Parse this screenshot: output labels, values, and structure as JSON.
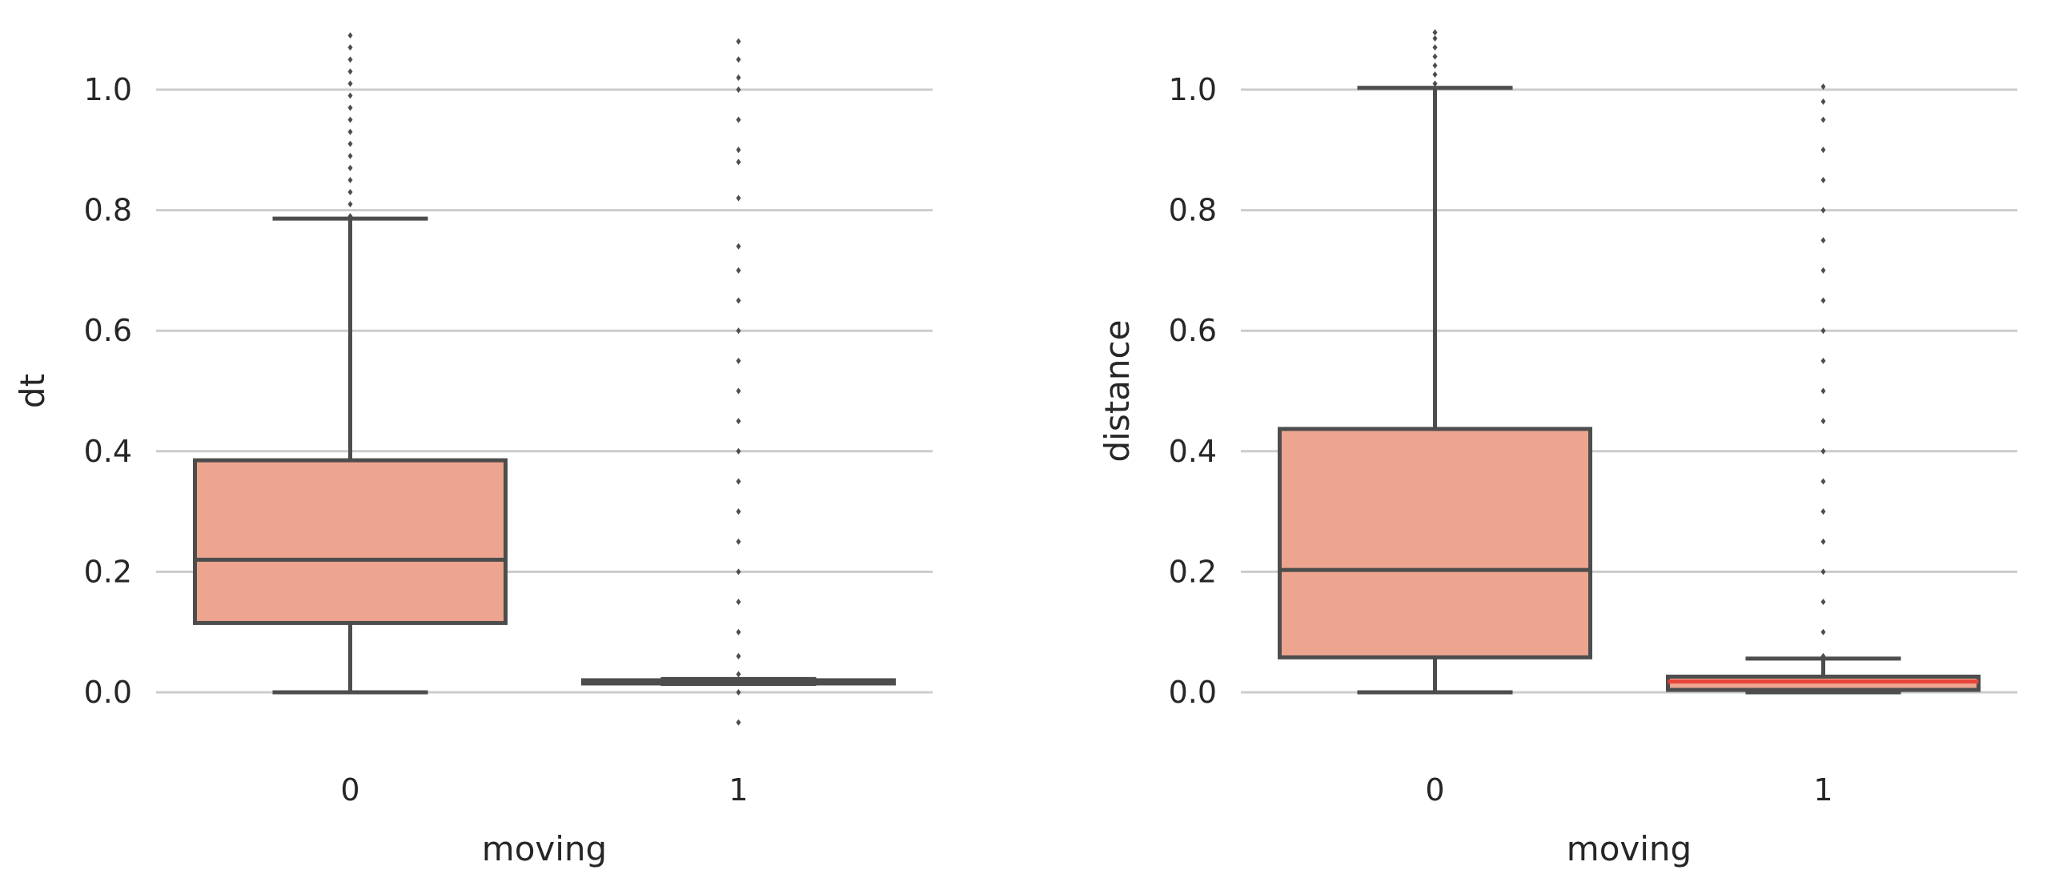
{
  "chart_data": [
    {
      "type": "box",
      "title": "",
      "xlabel": "moving",
      "ylabel": "dt",
      "categories": [
        "0",
        "1"
      ],
      "ylim": [
        -0.12,
        1.1
      ],
      "yticks": [
        "0.0",
        "0.2",
        "0.4",
        "0.6",
        "0.8",
        "1.0"
      ],
      "grid": "horizontal",
      "boxes": [
        {
          "category": "0",
          "q1": 0.115,
          "median": 0.22,
          "q3": 0.385,
          "whisker_low": 0.0,
          "whisker_high": 0.786,
          "outliers": [
            0.79,
            0.81,
            0.83,
            0.85,
            0.87,
            0.89,
            0.91,
            0.93,
            0.95,
            0.97,
            0.99,
            1.01,
            1.03,
            1.05,
            1.07,
            1.09
          ],
          "fill": "#eea590",
          "median_color": "#4d4d4d"
        },
        {
          "category": "1",
          "q1": 0.016,
          "median": 0.018,
          "q3": 0.02,
          "whisker_low": 0.014,
          "whisker_high": 0.022,
          "outliers": [
            -0.05,
            0.0,
            0.03,
            0.06,
            0.1,
            0.15,
            0.2,
            0.25,
            0.3,
            0.35,
            0.4,
            0.45,
            0.5,
            0.55,
            0.6,
            0.65,
            0.7,
            0.74,
            0.82,
            0.88,
            0.9,
            0.95,
            1.0,
            1.02,
            1.05,
            1.08
          ],
          "fill": "#eea590",
          "median_color": "#4d4d4d"
        }
      ]
    },
    {
      "type": "box",
      "title": "",
      "xlabel": "moving",
      "ylabel": "distance",
      "categories": [
        "0",
        "1"
      ],
      "ylim": [
        -0.12,
        1.1
      ],
      "yticks": [
        "0.0",
        "0.2",
        "0.4",
        "0.6",
        "0.8",
        "1.0"
      ],
      "grid": "horizontal",
      "boxes": [
        {
          "category": "0",
          "q1": 0.058,
          "median": 0.203,
          "q3": 0.437,
          "whisker_low": 0.0,
          "whisker_high": 1.003,
          "outliers": [
            1.01,
            1.025,
            1.04,
            1.055,
            1.07,
            1.085,
            1.095
          ],
          "fill": "#eea590",
          "median_color": "#4d4d4d"
        },
        {
          "category": "1",
          "q1": 0.004,
          "median": 0.018,
          "q3": 0.026,
          "whisker_low": 0.0,
          "whisker_high": 0.056,
          "outliers": [
            0.06,
            0.1,
            0.15,
            0.2,
            0.25,
            0.3,
            0.35,
            0.4,
            0.45,
            0.5,
            0.55,
            0.6,
            0.65,
            0.7,
            0.75,
            0.8,
            0.85,
            0.9,
            0.95,
            0.98,
            1.005
          ],
          "fill": "#eea590",
          "median_color": "#e8453c"
        }
      ]
    }
  ]
}
